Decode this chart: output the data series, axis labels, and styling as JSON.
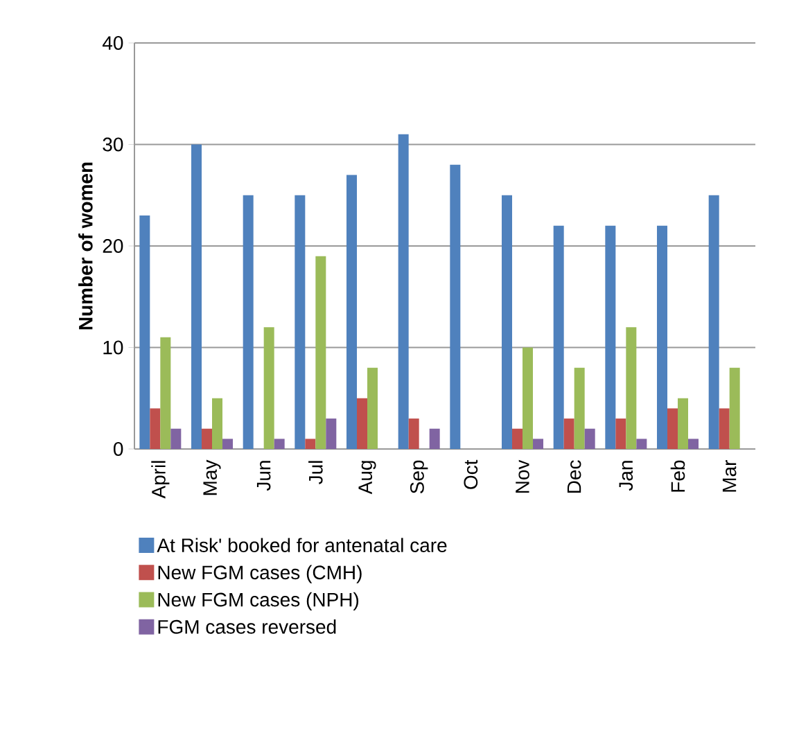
{
  "chart_data": {
    "type": "bar",
    "ylabel": "Number of women",
    "categories": [
      "April",
      "May",
      "Jun",
      "Jul",
      "Aug",
      "Sep",
      "Oct",
      "Nov",
      "Dec",
      "Jan",
      "Feb",
      "Mar"
    ],
    "series": [
      {
        "name": "At Risk' booked for antenatal care",
        "color": "#4f81bd",
        "values": [
          23,
          30,
          25,
          25,
          27,
          31,
          28,
          25,
          22,
          22,
          22,
          25
        ]
      },
      {
        "name": "New FGM cases (CMH)",
        "color": "#c0504d",
        "values": [
          4,
          2,
          0,
          1,
          5,
          3,
          0,
          2,
          3,
          3,
          4,
          4
        ]
      },
      {
        "name": "New FGM cases (NPH)",
        "color": "#9bbb59",
        "values": [
          11,
          5,
          12,
          19,
          8,
          0,
          0,
          10,
          8,
          12,
          5,
          8
        ]
      },
      {
        "name": "FGM cases reversed",
        "color": "#8064a2",
        "values": [
          2,
          1,
          1,
          3,
          0,
          2,
          0,
          1,
          2,
          1,
          1,
          0
        ]
      }
    ],
    "ylim": [
      0,
      40
    ],
    "yticks": [
      0,
      10,
      20,
      30,
      40
    ],
    "grid": "y",
    "legend": "bottom"
  }
}
